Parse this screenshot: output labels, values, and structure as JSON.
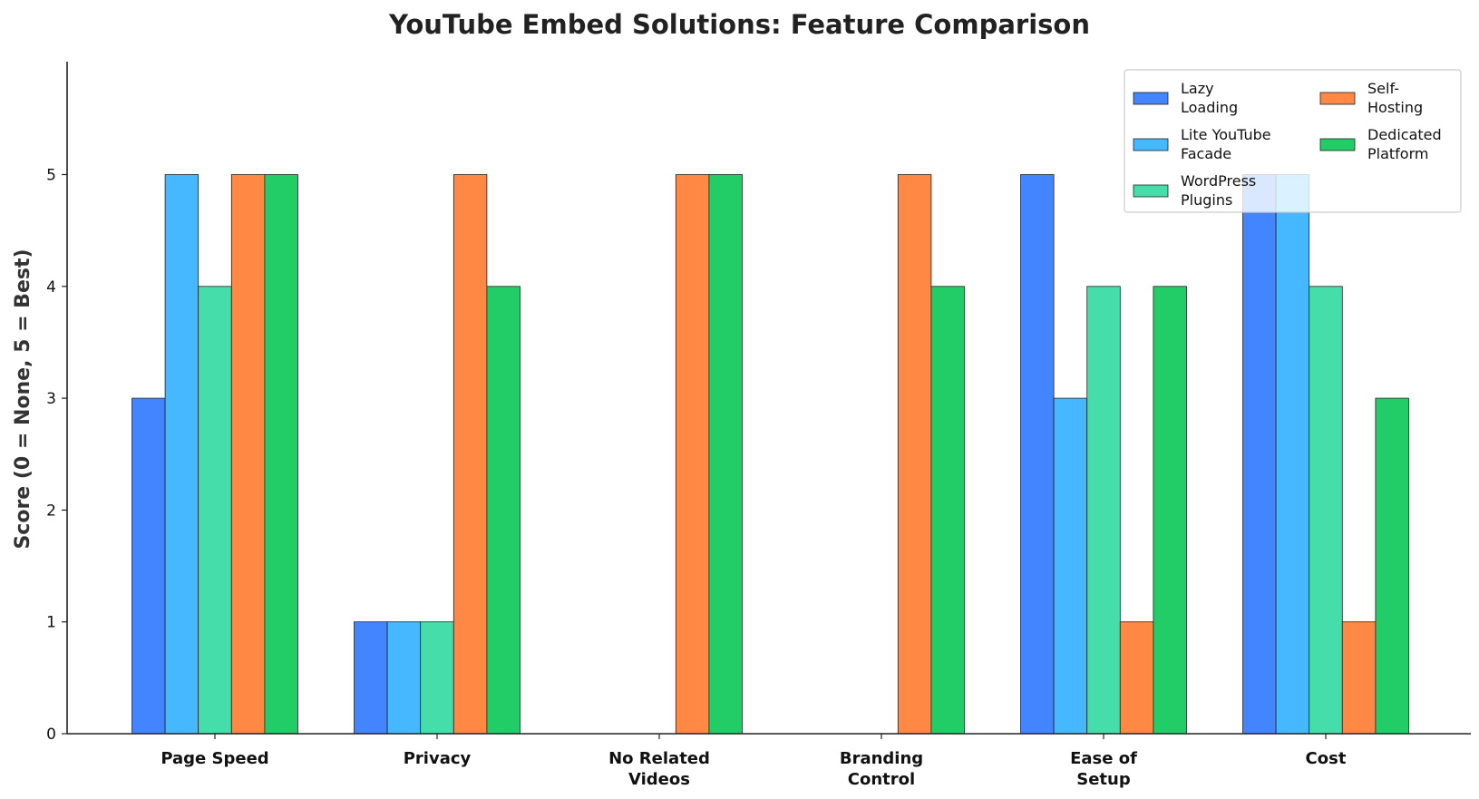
{
  "chart_data": {
    "type": "bar",
    "title": "YouTube Embed Solutions: Feature Comparison",
    "xlabel": "",
    "ylabel": "Score (0 = None, 5 = Best)",
    "ylim": [
      0,
      6
    ],
    "yticks": [
      0,
      1,
      2,
      3,
      4,
      5
    ],
    "grid": false,
    "legend_position": "upper right",
    "categories": [
      "Page Speed",
      "Privacy",
      "No Related\nVideos",
      "Branding\nControl",
      "Ease of\nSetup",
      "Cost"
    ],
    "series": [
      {
        "name": "Lazy Loading",
        "color": "#4285FF",
        "values": [
          3,
          1,
          0,
          0,
          5,
          5
        ]
      },
      {
        "name": "Lite YouTube Facade",
        "color": "#45B8FF",
        "values": [
          5,
          1,
          0,
          0,
          3,
          5
        ]
      },
      {
        "name": "WordPress Plugins",
        "color": "#45DDAA",
        "values": [
          4,
          1,
          0,
          0,
          4,
          4
        ]
      },
      {
        "name": "Self-Hosting",
        "color": "#FF8845",
        "values": [
          5,
          5,
          5,
          5,
          1,
          1
        ]
      },
      {
        "name": "Dedicated Platform",
        "color": "#22CC66",
        "values": [
          5,
          4,
          5,
          4,
          4,
          3
        ]
      }
    ],
    "legend_labels": [
      [
        "Lazy",
        "Loading"
      ],
      [
        "Lite YouTube",
        "Facade"
      ],
      [
        "WordPress",
        "Plugins"
      ],
      [
        "Self-",
        "Hosting"
      ],
      [
        "Dedicated",
        "Platform"
      ]
    ]
  }
}
